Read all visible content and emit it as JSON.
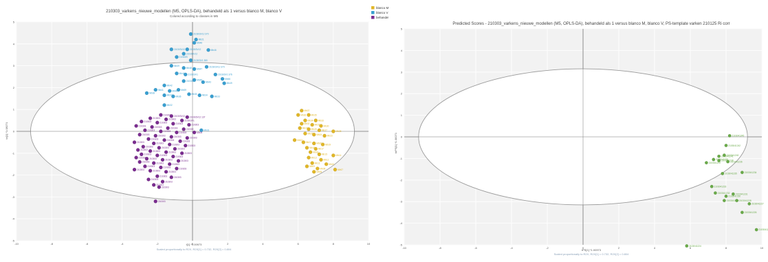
{
  "chart_data": [
    {
      "type": "scatter",
      "title": "210303_varkens_nieuwe_modellen (M5, OPLS-DA), behandeld als 1 versus blanco M, blanco V",
      "subtitle": "Colored according to classes in M5",
      "xlabel": "t[1] *1.00973",
      "ylabel": "to[1] *1.08271",
      "footer": "Scaled proportionally to R2X, R2X[1] = 0.732, R2X[2] = 0.804",
      "xlim": [
        -10,
        10
      ],
      "ylim": [
        -5,
        5
      ],
      "xticks": [
        -10,
        -8,
        -6,
        -4,
        -2,
        0,
        2,
        4,
        6,
        8,
        10
      ],
      "yticks": [
        -5,
        -4,
        -3,
        -2,
        -1,
        0,
        1,
        2,
        3,
        4,
        5
      ],
      "ellipse": {
        "cx": 0,
        "cy": 0,
        "rx": 9.2,
        "ry": 3.15
      },
      "legend": [
        {
          "name": "blanco M",
          "color": "#e0b628"
        },
        {
          "name": "blanco V",
          "color": "#3a9fd0"
        },
        {
          "name": "behandeld",
          "color": "#7a2d8f"
        }
      ],
      "series": [
        {
          "name": "blanco V",
          "color": "#3a9fd0",
          "points": [
            {
              "x": -0.1,
              "y": 4.45,
              "label": "210303V12 370"
            },
            {
              "x": 0.2,
              "y": 4.2,
              "label": "Mb21"
            },
            {
              "x": 0.1,
              "y": 4.05,
              "label": "Mb46"
            },
            {
              "x": -1.2,
              "y": 3.75,
              "label": "210303V12"
            },
            {
              "x": -0.3,
              "y": 3.75,
              "label": "210303V12"
            },
            {
              "x": 0.9,
              "y": 3.72,
              "label": "Mb46"
            },
            {
              "x": -0.5,
              "y": 3.55,
              "label": "210303V12"
            },
            {
              "x": -0.9,
              "y": 3.4,
              "label": "210303V"
            },
            {
              "x": -0.1,
              "y": 3.25,
              "label": "210303V1 380"
            },
            {
              "x": -1.2,
              "y": 3.0,
              "label": "Mb49"
            },
            {
              "x": -0.5,
              "y": 2.9,
              "label": "Mb48"
            },
            {
              "x": 0.8,
              "y": 2.95,
              "label": "210303V12 370"
            },
            {
              "x": 0.1,
              "y": 2.85,
              "label": "Mb47"
            },
            {
              "x": -0.9,
              "y": 2.65,
              "label": "Mb44"
            },
            {
              "x": -0.4,
              "y": 2.6,
              "label": "210303V1"
            },
            {
              "x": 1.3,
              "y": 2.6,
              "label": "210303V1 376"
            },
            {
              "x": 1.7,
              "y": 2.4,
              "label": "Mb46"
            },
            {
              "x": 0.1,
              "y": 2.35,
              "label": "Mb45"
            },
            {
              "x": -0.5,
              "y": 2.3,
              "label": "210303V"
            },
            {
              "x": 0.6,
              "y": 2.25,
              "label": "Mb43"
            },
            {
              "x": 1.8,
              "y": 2.2,
              "label": "Mb49"
            },
            {
              "x": -1.6,
              "y": 2.1,
              "label": "Mb42"
            },
            {
              "x": -2.1,
              "y": 1.9,
              "label": "Mb41"
            },
            {
              "x": -1.3,
              "y": 1.85,
              "label": "Mb40"
            },
            {
              "x": -0.8,
              "y": 1.9,
              "label": "Mb39"
            },
            {
              "x": -2.6,
              "y": 1.75,
              "label": "Mb38"
            },
            {
              "x": -1.6,
              "y": 1.65,
              "label": "Mb37"
            },
            {
              "x": -1.1,
              "y": 1.6,
              "label": "Mb36"
            },
            {
              "x": -0.2,
              "y": 1.7,
              "label": "Mb35"
            },
            {
              "x": 0.4,
              "y": 1.65,
              "label": "Mb34"
            },
            {
              "x": 1.1,
              "y": 1.6,
              "label": "Mb33"
            },
            {
              "x": -1.6,
              "y": 1.2,
              "label": "Mb32"
            },
            {
              "x": 0.5,
              "y": 0.05,
              "label": "Mb31"
            }
          ]
        },
        {
          "name": "blanco M",
          "color": "#e0b628",
          "points": [
            {
              "x": 6.2,
              "y": 0.95,
              "label": "Mb37"
            },
            {
              "x": 6.0,
              "y": 0.75,
              "label": "Mb36"
            },
            {
              "x": 6.6,
              "y": 0.75,
              "label": "Mb35"
            },
            {
              "x": 6.4,
              "y": 0.5,
              "label": "Mb34"
            },
            {
              "x": 7.0,
              "y": 0.5,
              "label": "Mb33"
            },
            {
              "x": 6.2,
              "y": 0.35,
              "label": "Mb32"
            },
            {
              "x": 6.8,
              "y": 0.3,
              "label": "Mb31"
            },
            {
              "x": 7.3,
              "y": 0.25,
              "label": "Mb30"
            },
            {
              "x": 6.1,
              "y": 0.15,
              "label": "Mb29"
            },
            {
              "x": 6.6,
              "y": 0.1,
              "label": "Mb28"
            },
            {
              "x": 7.2,
              "y": 0.05,
              "label": "Mb27"
            },
            {
              "x": 8.0,
              "y": 0.0,
              "label": "Mb26"
            },
            {
              "x": 6.4,
              "y": -0.1,
              "label": "Mb25"
            },
            {
              "x": 6.9,
              "y": -0.15,
              "label": "Mb24"
            },
            {
              "x": 7.5,
              "y": -0.2,
              "label": "Mb23"
            },
            {
              "x": 5.8,
              "y": -0.4,
              "label": "Mb22"
            },
            {
              "x": 6.3,
              "y": -0.5,
              "label": "Mb21"
            },
            {
              "x": 6.9,
              "y": -0.55,
              "label": "Mb20"
            },
            {
              "x": 7.4,
              "y": -0.6,
              "label": "Mb19"
            },
            {
              "x": 6.5,
              "y": -0.75,
              "label": "Mb18"
            },
            {
              "x": 7.0,
              "y": -0.8,
              "label": "Mb17"
            },
            {
              "x": 6.7,
              "y": -0.95,
              "label": "Mb16"
            },
            {
              "x": 7.2,
              "y": -1.05,
              "label": "Mb15"
            },
            {
              "x": 8.0,
              "y": -1.1,
              "label": "Mb14"
            },
            {
              "x": 6.6,
              "y": -1.2,
              "label": "Mb13"
            },
            {
              "x": 7.3,
              "y": -1.3,
              "label": "Mb12"
            },
            {
              "x": 6.8,
              "y": -1.45,
              "label": "Mb11"
            },
            {
              "x": 7.6,
              "y": -1.5,
              "label": "Mb10"
            },
            {
              "x": 6.5,
              "y": -1.6,
              "label": "Mb09"
            },
            {
              "x": 7.1,
              "y": -1.7,
              "label": "Mb08"
            },
            {
              "x": 8.1,
              "y": -1.75,
              "label": "Mb07"
            },
            {
              "x": 6.9,
              "y": -1.85,
              "label": "Mb06"
            }
          ]
        },
        {
          "name": "behandeld",
          "color": "#7a2d8f",
          "points": [
            {
              "x": -1.8,
              "y": 0.75,
              "label": "210303"
            },
            {
              "x": -1.2,
              "y": 0.7,
              "label": "210303V12"
            },
            {
              "x": -0.3,
              "y": 0.65,
              "label": "210303V12 137"
            },
            {
              "x": -2.4,
              "y": 0.6,
              "label": "210303"
            },
            {
              "x": -1.5,
              "y": 0.55,
              "label": "210303"
            },
            {
              "x": -0.6,
              "y": 0.5,
              "label": "210303V1"
            },
            {
              "x": -2.9,
              "y": 0.45,
              "label": "210303"
            },
            {
              "x": -2.0,
              "y": 0.4,
              "label": "210303"
            },
            {
              "x": -1.1,
              "y": 0.35,
              "label": "210303"
            },
            {
              "x": -0.2,
              "y": 0.3,
              "label": "210303"
            },
            {
              "x": -3.2,
              "y": 0.25,
              "label": "210303"
            },
            {
              "x": -2.3,
              "y": 0.2,
              "label": "210303"
            },
            {
              "x": -1.4,
              "y": 0.15,
              "label": "210303"
            },
            {
              "x": -0.5,
              "y": 0.1,
              "label": "210303"
            },
            {
              "x": -2.7,
              "y": 0.05,
              "label": "210303"
            },
            {
              "x": -1.8,
              "y": 0.0,
              "label": "210303"
            },
            {
              "x": -0.9,
              "y": -0.05,
              "label": "210303"
            },
            {
              "x": 0.1,
              "y": -0.05,
              "label": "Mb05"
            },
            {
              "x": -3.0,
              "y": -0.15,
              "label": "210303"
            },
            {
              "x": -2.1,
              "y": -0.2,
              "label": "210303"
            },
            {
              "x": -1.2,
              "y": -0.25,
              "label": "210303"
            },
            {
              "x": -0.3,
              "y": -0.3,
              "label": "210303"
            },
            {
              "x": -2.5,
              "y": -0.35,
              "label": "210303"
            },
            {
              "x": -1.6,
              "y": -0.4,
              "label": "210303"
            },
            {
              "x": -0.7,
              "y": -0.45,
              "label": "210303"
            },
            {
              "x": -3.3,
              "y": -0.5,
              "label": "210303"
            },
            {
              "x": -2.2,
              "y": -0.55,
              "label": "210303"
            },
            {
              "x": -1.3,
              "y": -0.6,
              "label": "210303"
            },
            {
              "x": -0.4,
              "y": -0.65,
              "label": "210303"
            },
            {
              "x": -2.8,
              "y": -0.7,
              "label": "210303"
            },
            {
              "x": -1.9,
              "y": -0.75,
              "label": "210303"
            },
            {
              "x": -1.0,
              "y": -0.8,
              "label": "210303"
            },
            {
              "x": -3.1,
              "y": -0.85,
              "label": "210303"
            },
            {
              "x": -2.4,
              "y": -0.9,
              "label": "210303"
            },
            {
              "x": -1.5,
              "y": -0.95,
              "label": "210303"
            },
            {
              "x": -0.6,
              "y": -1.0,
              "label": "210303"
            },
            {
              "x": -2.9,
              "y": -1.05,
              "label": "210303"
            },
            {
              "x": -2.0,
              "y": -1.1,
              "label": "210303"
            },
            {
              "x": -1.1,
              "y": -1.15,
              "label": "210303"
            },
            {
              "x": -3.2,
              "y": -1.2,
              "label": "210303"
            },
            {
              "x": -2.6,
              "y": -1.25,
              "label": "210303"
            },
            {
              "x": -1.7,
              "y": -1.3,
              "label": "210303"
            },
            {
              "x": -0.8,
              "y": -1.35,
              "label": "210303"
            },
            {
              "x": -3.0,
              "y": -1.4,
              "label": "210303"
            },
            {
              "x": -2.2,
              "y": -1.45,
              "label": "210303"
            },
            {
              "x": -1.3,
              "y": -1.5,
              "label": "210303"
            },
            {
              "x": -2.7,
              "y": -1.6,
              "label": "210303"
            },
            {
              "x": -1.8,
              "y": -1.65,
              "label": "210303"
            },
            {
              "x": -0.9,
              "y": -1.7,
              "label": "210303"
            },
            {
              "x": -3.3,
              "y": -1.75,
              "label": "210303"
            },
            {
              "x": -2.4,
              "y": -1.8,
              "label": "210303"
            },
            {
              "x": -1.5,
              "y": -1.85,
              "label": "210303"
            },
            {
              "x": -2.0,
              "y": -2.05,
              "label": "210303"
            },
            {
              "x": -1.2,
              "y": -2.1,
              "label": "210303"
            },
            {
              "x": -2.5,
              "y": -2.2,
              "label": "210303"
            },
            {
              "x": -1.7,
              "y": -2.3,
              "label": "210303"
            },
            {
              "x": -2.2,
              "y": -2.45,
              "label": "210303"
            },
            {
              "x": -1.9,
              "y": -2.55,
              "label": "210303"
            },
            {
              "x": -2.1,
              "y": -3.2,
              "label": "210303"
            }
          ]
        }
      ]
    },
    {
      "type": "scatter",
      "title": "Predicted Scores - 210303_varkens_nieuwe_modellen (M5, OPLS-DA), behandeld als 1 versus blanco M, blanco V, PS-template varken 210125 Ri corr",
      "xlabel": "tPS[1] *1.00973",
      "ylabel": "toPS[1] *1.08271",
      "footer": "Scaled proportionally to R2X, R2X[1] = 0.732, R2X[2] = 0.804",
      "xlim": [
        -10,
        10
      ],
      "ylim": [
        -5,
        5
      ],
      "xticks": [
        -10,
        -8,
        -6,
        -4,
        -2,
        0,
        2,
        4,
        6,
        8,
        10
      ],
      "yticks": [
        -5,
        -4,
        -3,
        -2,
        -1,
        0,
        1,
        2,
        3,
        4,
        5
      ],
      "ellipse": {
        "cx": 0,
        "cy": 0,
        "rx": 9.2,
        "ry": 3.15
      },
      "series": [
        {
          "name": "",
          "color": "#6aaa4a",
          "points": [
            {
              "x": 8.2,
              "y": 0.05,
              "label": "2103041245"
            },
            {
              "x": 8.0,
              "y": -0.4,
              "label": "2103041242"
            },
            {
              "x": 7.6,
              "y": -0.9,
              "label": "2103041241"
            },
            {
              "x": 7.9,
              "y": -0.85,
              "label": "2103041240"
            },
            {
              "x": 7.3,
              "y": -1.05,
              "label": "2103041239"
            },
            {
              "x": 7.6,
              "y": -1.1,
              "label": "2103041238"
            },
            {
              "x": 6.9,
              "y": -1.2,
              "label": "2103041237"
            },
            {
              "x": 8.1,
              "y": -1.15,
              "label": "2103041236"
            },
            {
              "x": 7.8,
              "y": -1.7,
              "label": "2103041235"
            },
            {
              "x": 8.9,
              "y": -1.65,
              "label": "2103041234"
            },
            {
              "x": 7.2,
              "y": -2.3,
              "label": "2103041233"
            },
            {
              "x": 7.4,
              "y": -2.6,
              "label": "2103041232"
            },
            {
              "x": 8.4,
              "y": -2.65,
              "label": "2103041231"
            },
            {
              "x": 8.0,
              "y": -2.75,
              "label": "2103041230"
            },
            {
              "x": 7.9,
              "y": -2.95,
              "label": "2103041229"
            },
            {
              "x": 8.6,
              "y": -2.95,
              "label": "2103041228"
            },
            {
              "x": 9.3,
              "y": -3.1,
              "label": "2103041227"
            },
            {
              "x": 8.9,
              "y": -3.5,
              "label": "2103041226"
            },
            {
              "x": 9.7,
              "y": -4.3,
              "label": "2103041225"
            },
            {
              "x": 5.8,
              "y": -5.05,
              "label": "2103041224"
            }
          ]
        }
      ]
    }
  ]
}
